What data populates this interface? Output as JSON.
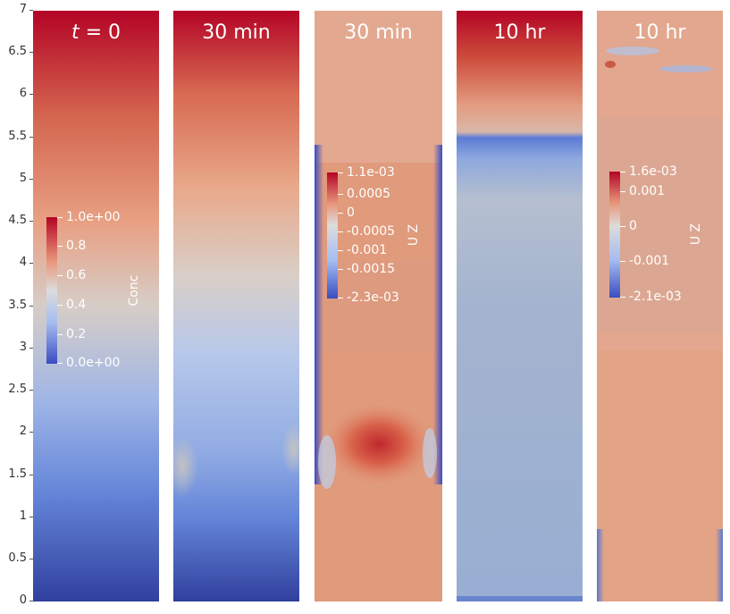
{
  "y_axis": {
    "ticks": [
      "0",
      "0.5",
      "1",
      "1.5",
      "2",
      "2.5",
      "3",
      "3.5",
      "4",
      "4.5",
      "5",
      "5.5",
      "6",
      "6.5",
      "7"
    ],
    "range": [
      0,
      7
    ]
  },
  "panels": [
    {
      "title_italic": "t",
      "title_rest": " = 0",
      "field": "Conc"
    },
    {
      "title": "30 min",
      "field": "Conc"
    },
    {
      "title": "30 min",
      "field": "U Z"
    },
    {
      "title": "10 hr",
      "field": "Conc"
    },
    {
      "title": "10 hr",
      "field": "U Z"
    }
  ],
  "colorbars": {
    "conc": {
      "title": "Conc",
      "labels": [
        "1.0e+00",
        "0.8",
        "0.6",
        "0.4",
        "0.2",
        "0.0e+00"
      ]
    },
    "uz_30min": {
      "title": "U Z",
      "labels": [
        "1.1e-03",
        "0.0005",
        "0",
        "-0.0005",
        "-0.001",
        "-0.0015",
        "-2.3e-03"
      ]
    },
    "uz_10hr": {
      "title": "U Z",
      "labels": [
        "1.6e-03",
        "0.001",
        "0",
        "-0.001",
        "-2.1e-03"
      ]
    }
  },
  "colormap": {
    "high": "#b40426",
    "mid": "#dddcdc",
    "low": "#3b4cc0"
  }
}
